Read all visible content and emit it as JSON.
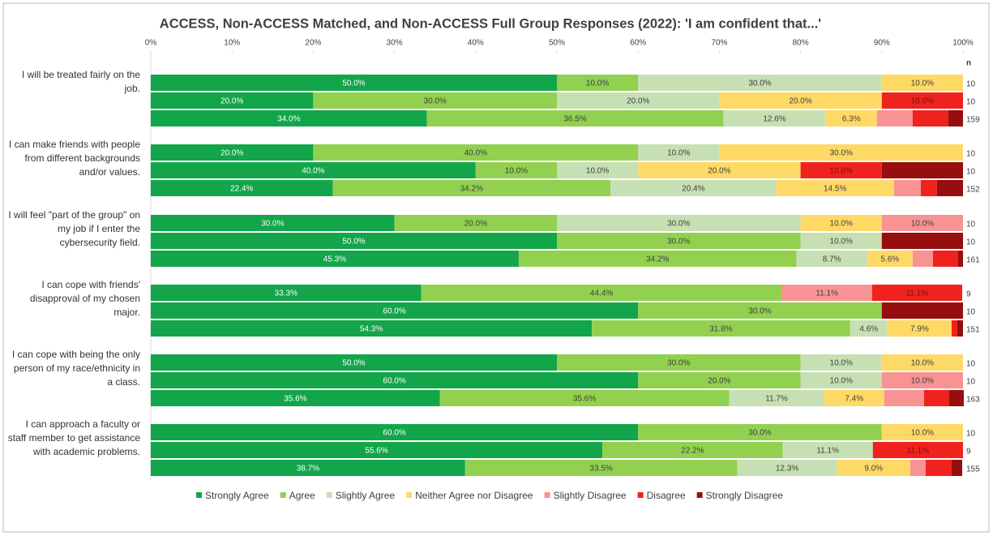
{
  "chart_data": {
    "type": "stacked_bar_horizontal",
    "title": "ACCESS, Non-ACCESS Matched, and Non-ACCESS Full Group Responses (2022): 'I am confident that...'",
    "categories": [
      "I will be treated fairly on the job.",
      "I can make friends with people from different backgrounds and/or values.",
      "I will feel \"part of the group\" on my job if I enter the cybersecurity field.",
      "I can cope with friends' disapproval of my chosen major.",
      "I can cope with being the only person of my race/ethnicity in a class.",
      "I can approach a faculty or staff member to get assistance with academic problems."
    ],
    "n_label": "n",
    "n": [
      [
        10,
        10,
        159
      ],
      [
        10,
        10,
        152
      ],
      [
        10,
        10,
        161
      ],
      [
        9,
        10,
        151
      ],
      [
        10,
        10,
        163
      ],
      [
        10,
        9,
        155
      ]
    ],
    "xlim": [
      0,
      100
    ],
    "xticks": [
      {
        "value": 0,
        "label": "0%"
      },
      {
        "value": 10,
        "label": "10%"
      },
      {
        "value": 20,
        "label": "20%"
      },
      {
        "value": 30,
        "label": "30%"
      },
      {
        "value": 40,
        "label": "40%"
      },
      {
        "value": 50,
        "label": "50%"
      },
      {
        "value": 60,
        "label": "60%"
      },
      {
        "value": 70,
        "label": "70%"
      },
      {
        "value": 80,
        "label": "80%"
      },
      {
        "value": 90,
        "label": "90%"
      },
      {
        "value": 100,
        "label": "100%"
      }
    ],
    "series": [
      {
        "name": "Strongly Agree",
        "color": "#12a54a",
        "values": [
          [
            50,
            20,
            34.0
          ],
          [
            20,
            40,
            22.4
          ],
          [
            30,
            50,
            45.3
          ],
          [
            33.3,
            60,
            54.3
          ],
          [
            50,
            60,
            35.6
          ],
          [
            60,
            55.6,
            38.7
          ]
        ],
        "value_labels": [
          [
            "50.0%",
            "20.0%",
            "34.0%"
          ],
          [
            "20.0%",
            "40.0%",
            "22.4%"
          ],
          [
            "30.0%",
            "50.0%",
            "45.3%"
          ],
          [
            "33.3%",
            "60.0%",
            "54.3%"
          ],
          [
            "50.0%",
            "60.0%",
            "35.6%"
          ],
          [
            "60.0%",
            "55.6%",
            "38.7%"
          ]
        ]
      },
      {
        "name": "Agree",
        "color": "#92d050",
        "values": [
          [
            10,
            30,
            36.5
          ],
          [
            40,
            10,
            34.2
          ],
          [
            20,
            30,
            34.2
          ],
          [
            44.4,
            30,
            31.8
          ],
          [
            30,
            20,
            35.6
          ],
          [
            30,
            22.2,
            33.5
          ]
        ],
        "value_labels": [
          [
            "10.0%",
            "30.0%",
            "36.5%"
          ],
          [
            "40.0%",
            "10.0%",
            "34.2%"
          ],
          [
            "20.0%",
            "30.0%",
            "34.2%"
          ],
          [
            "44.4%",
            "30.0%",
            "31.8%"
          ],
          [
            "30.0%",
            "20.0%",
            "35.6%"
          ],
          [
            "30.0%",
            "22.2%",
            "33.5%"
          ]
        ]
      },
      {
        "name": "Slightly Agree",
        "color": "#c6e0b4",
        "values": [
          [
            30,
            20,
            12.6
          ],
          [
            10,
            10,
            20.4
          ],
          [
            30,
            10,
            8.7
          ],
          [
            0,
            0,
            4.6
          ],
          [
            10,
            10,
            11.7
          ],
          [
            0,
            11.1,
            12.3
          ]
        ],
        "value_labels": [
          [
            "30.0%",
            "20.0%",
            "12.6%"
          ],
          [
            "10.0%",
            "10.0%",
            "20.4%"
          ],
          [
            "30.0%",
            "10.0%",
            "8.7%"
          ],
          [
            null,
            null,
            "4.6%"
          ],
          [
            "10.0%",
            "10.0%",
            "11.7%"
          ],
          [
            null,
            "11.1%",
            "12.3%"
          ]
        ]
      },
      {
        "name": "Neither Agree nor Disagree",
        "color": "#ffd966",
        "values": [
          [
            10,
            20,
            6.3
          ],
          [
            30,
            20,
            14.5
          ],
          [
            10,
            0,
            5.6
          ],
          [
            0,
            0,
            7.9
          ],
          [
            10,
            0,
            7.4
          ],
          [
            10,
            0,
            9.0
          ]
        ],
        "value_labels": [
          [
            "10.0%",
            "20.0%",
            "6.3%"
          ],
          [
            "30.0%",
            "20.0%",
            "14.5%"
          ],
          [
            "10.0%",
            null,
            "5.6%"
          ],
          [
            null,
            null,
            "7.9%"
          ],
          [
            "10.0%",
            null,
            "7.4%"
          ],
          [
            "10.0%",
            null,
            "9.0%"
          ]
        ]
      },
      {
        "name": "Slightly Disagree",
        "color": "#f99393",
        "values": [
          [
            0,
            0,
            4.4
          ],
          [
            0,
            0,
            3.3
          ],
          [
            10,
            0,
            2.5
          ],
          [
            11.1,
            0,
            0
          ],
          [
            0,
            10,
            4.9
          ],
          [
            0,
            0,
            1.9
          ]
        ],
        "value_labels": [
          [
            null,
            null,
            null
          ],
          [
            null,
            null,
            null
          ],
          [
            "10.0%",
            null,
            null
          ],
          [
            "11.1%",
            null,
            null
          ],
          [
            null,
            "10.0%",
            null
          ],
          [
            null,
            null,
            null
          ]
        ]
      },
      {
        "name": "Disagree",
        "color": "#f0221e",
        "values": [
          [
            0,
            10,
            4.4
          ],
          [
            0,
            10,
            2.0
          ],
          [
            0,
            0,
            3.1
          ],
          [
            11.1,
            0,
            0.7
          ],
          [
            0,
            0,
            3.1
          ],
          [
            0,
            11.1,
            3.2
          ]
        ],
        "value_labels": [
          [
            null,
            "10.0%",
            null
          ],
          [
            null,
            "10.0%",
            null
          ],
          [
            null,
            null,
            null
          ],
          [
            "11.1%",
            null,
            null
          ],
          [
            null,
            null,
            null
          ],
          [
            null,
            "11.1%",
            null
          ]
        ]
      },
      {
        "name": "Strongly Disagree",
        "color": "#960e0e",
        "values": [
          [
            0,
            0,
            1.8
          ],
          [
            0,
            10,
            3.2
          ],
          [
            0,
            10,
            0.6
          ],
          [
            0,
            10,
            0.7
          ],
          [
            0,
            0,
            1.8
          ],
          [
            0,
            0,
            1.3
          ]
        ],
        "value_labels": [
          [
            null,
            null,
            null
          ],
          [
            null,
            null,
            null
          ],
          [
            null,
            null,
            null
          ],
          [
            null,
            null,
            null
          ],
          [
            null,
            null,
            null
          ],
          [
            null,
            null,
            null
          ]
        ]
      }
    ]
  }
}
